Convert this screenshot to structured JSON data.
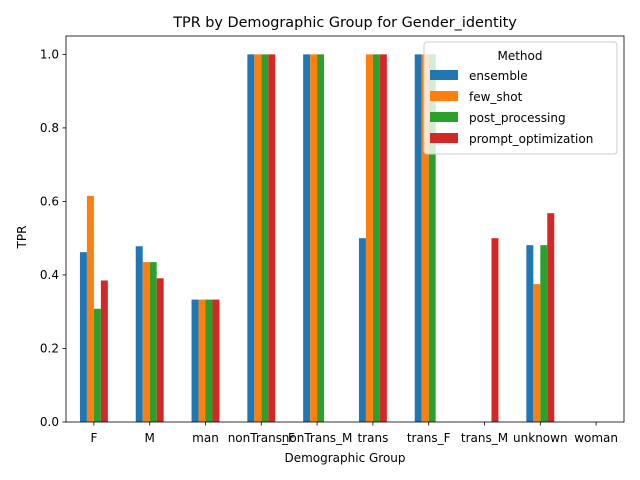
{
  "chart_data": {
    "type": "bar",
    "title": "TPR by Demographic Group for Gender_identity",
    "xlabel": "Demographic Group",
    "ylabel": "TPR",
    "ylim": [
      0,
      1.05
    ],
    "yticks": [
      "0.0",
      "0.2",
      "0.4",
      "0.6",
      "0.8",
      "1.0"
    ],
    "categories": [
      "F",
      "M",
      "man",
      "nonTrans_F",
      "nonTrans_M",
      "trans",
      "trans_F",
      "trans_M",
      "unknown",
      "woman"
    ],
    "legend_title": "Method",
    "legend_position": "top-right",
    "grid": false,
    "series": [
      {
        "name": "ensemble",
        "color": "#1f77b4",
        "values": [
          0.462,
          0.478,
          0.333,
          1.0,
          1.0,
          0.5,
          1.0,
          0,
          0.481,
          0
        ]
      },
      {
        "name": "few_shot",
        "color": "#ff7f0e",
        "values": [
          0.615,
          0.435,
          0.333,
          1.0,
          1.0,
          1.0,
          1.0,
          0,
          0.375,
          0
        ]
      },
      {
        "name": "post_processing",
        "color": "#2ca02c",
        "values": [
          0.308,
          0.435,
          0.333,
          1.0,
          1.0,
          1.0,
          1.0,
          0,
          0.481,
          0
        ]
      },
      {
        "name": "prompt_optimization",
        "color": "#d62728",
        "values": [
          0.385,
          0.391,
          0.333,
          1.0,
          0,
          1.0,
          0,
          0.5,
          0.568,
          0
        ]
      }
    ]
  }
}
